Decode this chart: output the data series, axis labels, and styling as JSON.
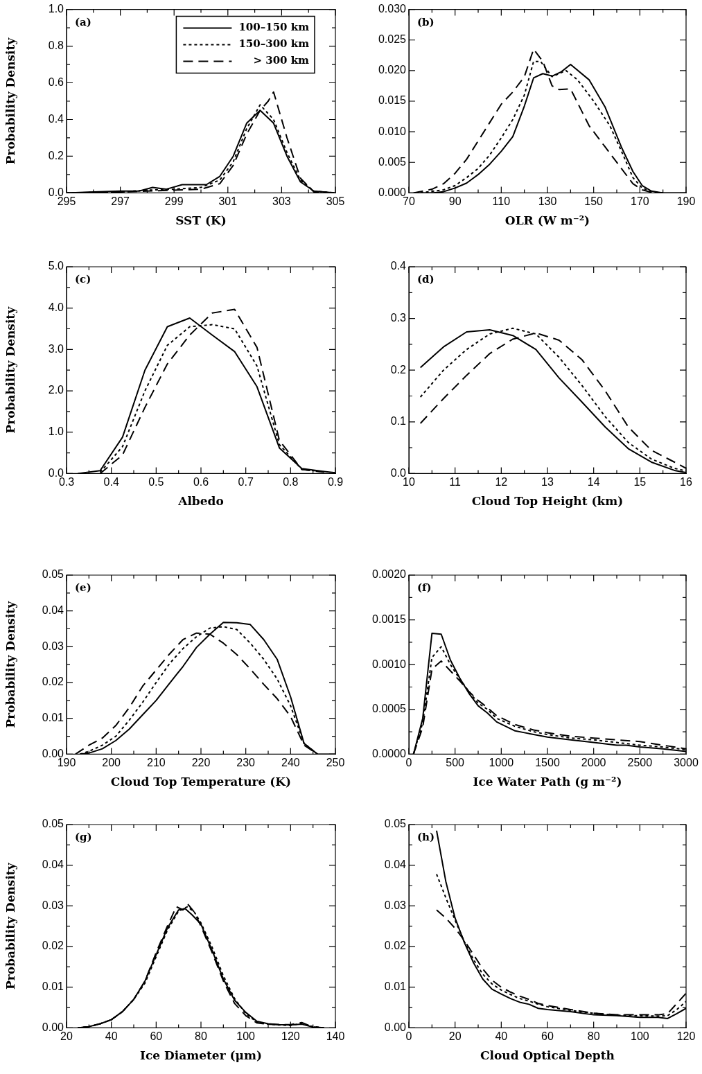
{
  "chart_data": [
    {
      "type": "line",
      "xlabel": "SST (K)",
      "ylabel": "Probability Density",
      "annotations": [
        "(a)"
      ],
      "legend": "top right",
      "xlim": [
        295,
        305
      ],
      "ylim": [
        0,
        1
      ],
      "xticks": [
        295,
        {
          "value": 296,
          "label": null
        },
        297,
        {
          "value": 298,
          "label": null
        },
        299,
        {
          "value": 300,
          "label": null
        },
        301,
        {
          "value": 302,
          "label": null
        },
        303,
        {
          "value": 304,
          "label": null
        },
        305
      ],
      "yticks": [
        {
          "value": 0,
          "label": "0.0"
        },
        {
          "value": 0.1,
          "label": null
        },
        0.2,
        {
          "value": 0.3,
          "label": null
        },
        0.4,
        {
          "value": 0.5,
          "label": null
        },
        0.6,
        {
          "value": 0.7,
          "label": null
        },
        0.8,
        {
          "value": 0.9,
          "label": null
        },
        {
          "value": 1,
          "label": "1.0"
        }
      ],
      "series": [
        {
          "name": "100–150 km",
          "color": "#000000",
          "line_style": "solid",
          "x": [
            295,
            296,
            297,
            297.7,
            298.2,
            298.7,
            299.3,
            300.2,
            300.7,
            301.2,
            301.7,
            302.2,
            302.7,
            303.2,
            303.7,
            304.2,
            305
          ],
          "values": [
            0,
            0.005,
            0.01,
            0.01,
            0.03,
            0.02,
            0.045,
            0.045,
            0.09,
            0.2,
            0.38,
            0.45,
            0.38,
            0.2,
            0.06,
            0.01,
            0
          ]
        },
        {
          "name": "150–300 km",
          "color": "#000000",
          "line_style": "dotted",
          "x": [
            295,
            297,
            298,
            299,
            300,
            300.7,
            301.2,
            301.7,
            302.2,
            302.7,
            303.2,
            303.7,
            304.2,
            305
          ],
          "values": [
            0,
            0.005,
            0.015,
            0.02,
            0.03,
            0.07,
            0.17,
            0.35,
            0.48,
            0.4,
            0.22,
            0.07,
            0.01,
            0
          ]
        },
        {
          "name": "> 300 km",
          "color": "#000000",
          "line_style": "dashed",
          "x": [
            295,
            297,
            298,
            299,
            300,
            300.7,
            301.2,
            301.7,
            302.2,
            302.5,
            302.7,
            303.2,
            303.7,
            304.2,
            305
          ],
          "values": [
            0,
            0.005,
            0.01,
            0.015,
            0.02,
            0.05,
            0.15,
            0.32,
            0.45,
            0.5,
            0.55,
            0.3,
            0.08,
            0.005,
            0
          ]
        }
      ]
    },
    {
      "type": "line",
      "xlabel": "OLR (W m⁻²)",
      "annotations": [
        "(b)"
      ],
      "xlim": [
        70,
        190
      ],
      "ylim": [
        0,
        0.03
      ],
      "xticks": [
        70,
        {
          "value": 80,
          "label": null
        },
        90,
        {
          "value": 100,
          "label": null
        },
        110,
        {
          "value": 120,
          "label": null
        },
        130,
        {
          "value": 140,
          "label": null
        },
        150,
        {
          "value": 160,
          "label": null
        },
        170,
        {
          "value": 180,
          "label": null
        },
        190
      ],
      "yticks": [
        {
          "value": 0,
          "label": "0.000"
        },
        {
          "value": 0.005,
          "label": "0.005"
        },
        {
          "value": 0.01,
          "label": "0.010"
        },
        {
          "value": 0.015,
          "label": "0.015"
        },
        {
          "value": 0.02,
          "label": "0.020"
        },
        {
          "value": 0.025,
          "label": "0.025"
        },
        {
          "value": 0.03,
          "label": "0.030"
        }
      ],
      "series": [
        {
          "color": "#000000",
          "line_style": "solid",
          "x": [
            75,
            80,
            85,
            90,
            95,
            100,
            105,
            110,
            115,
            120,
            124,
            128,
            132,
            136,
            140,
            148,
            155,
            162,
            167,
            171,
            175,
            180,
            190
          ],
          "values": [
            0,
            0,
            0.0002,
            0.0008,
            0.0016,
            0.003,
            0.0047,
            0.0068,
            0.0092,
            0.0142,
            0.0188,
            0.0195,
            0.0191,
            0.0198,
            0.021,
            0.0185,
            0.014,
            0.0075,
            0.0035,
            0.0012,
            0.0003,
            0,
            0
          ]
        },
        {
          "color": "#000000",
          "line_style": "dotted",
          "x": [
            75,
            85,
            90,
            95,
            100,
            105,
            110,
            115,
            120,
            124,
            127,
            132,
            138,
            143,
            150,
            157,
            163,
            167,
            171,
            175,
            180
          ],
          "values": [
            0,
            0.0005,
            0.0012,
            0.0025,
            0.004,
            0.0062,
            0.009,
            0.012,
            0.016,
            0.0215,
            0.0215,
            0.019,
            0.02,
            0.0185,
            0.015,
            0.011,
            0.006,
            0.0025,
            0.0008,
            0.0002,
            0
          ]
        },
        {
          "color": "#000000",
          "line_style": "dashed",
          "x": [
            72,
            80,
            85,
            90,
            95,
            100,
            105,
            110,
            115,
            120,
            124,
            128,
            132,
            135,
            140,
            148,
            155,
            162,
            167,
            171,
            175,
            180
          ],
          "values": [
            0,
            0.0006,
            0.0015,
            0.0032,
            0.0055,
            0.0085,
            0.0115,
            0.0145,
            0.0165,
            0.019,
            0.0235,
            0.0215,
            0.0175,
            0.0169,
            0.017,
            0.011,
            0.0075,
            0.004,
            0.0015,
            0.0005,
            0.0001,
            0
          ]
        }
      ]
    },
    {
      "type": "line",
      "xlabel": "Albedo",
      "ylabel": "Probability Density",
      "annotations": [
        "(c)"
      ],
      "xlim": [
        0.3,
        0.9
      ],
      "ylim": [
        0,
        5
      ],
      "xticks": [
        0.3,
        {
          "value": 0.35,
          "label": null
        },
        0.4,
        {
          "value": 0.45,
          "label": null
        },
        0.5,
        {
          "value": 0.55,
          "label": null
        },
        0.6,
        {
          "value": 0.65,
          "label": null
        },
        0.7,
        {
          "value": 0.75,
          "label": null
        },
        0.8,
        {
          "value": 0.85,
          "label": null
        },
        0.9
      ],
      "yticks": [
        {
          "value": 0,
          "label": "0.0"
        },
        {
          "value": 0.5,
          "label": null
        },
        {
          "value": 1,
          "label": "1.0"
        },
        {
          "value": 1.5,
          "label": null
        },
        {
          "value": 2,
          "label": "2.0"
        },
        {
          "value": 2.5,
          "label": null
        },
        {
          "value": 3,
          "label": "3.0"
        },
        {
          "value": 3.5,
          "label": null
        },
        {
          "value": 4,
          "label": "4.0"
        },
        {
          "value": 4.5,
          "label": null
        },
        {
          "value": 5,
          "label": "5.0"
        }
      ],
      "series": [
        {
          "color": "#000000",
          "line_style": "solid",
          "x": [
            0.325,
            0.375,
            0.425,
            0.475,
            0.525,
            0.575,
            0.625,
            0.675,
            0.725,
            0.775,
            0.825,
            0.875,
            0.9
          ],
          "values": [
            0,
            0.07,
            0.88,
            2.5,
            3.55,
            3.76,
            3.35,
            2.95,
            2.1,
            0.62,
            0.12,
            0.05,
            0.02
          ]
        },
        {
          "color": "#000000",
          "line_style": "dotted",
          "x": [
            0.375,
            0.425,
            0.475,
            0.525,
            0.575,
            0.625,
            0.675,
            0.725,
            0.775,
            0.825,
            0.875
          ],
          "values": [
            0.03,
            0.65,
            2,
            3.1,
            3.55,
            3.6,
            3.5,
            2.6,
            0.7,
            0.1,
            0.04
          ]
        },
        {
          "color": "#000000",
          "line_style": "dashed",
          "x": [
            0.375,
            0.425,
            0.475,
            0.525,
            0.575,
            0.625,
            0.675,
            0.725,
            0.775,
            0.825,
            0.875
          ],
          "values": [
            0,
            0.45,
            1.6,
            2.65,
            3.35,
            3.88,
            3.97,
            3.05,
            0.8,
            0.1,
            0.03
          ]
        }
      ]
    },
    {
      "type": "line",
      "xlabel": "Cloud Top Height (km)",
      "annotations": [
        "(d)"
      ],
      "xlim": [
        10,
        16
      ],
      "ylim": [
        0,
        0.4
      ],
      "xticks": [
        10,
        {
          "value": 10.5,
          "label": null
        },
        11,
        {
          "value": 11.5,
          "label": null
        },
        12,
        {
          "value": 12.5,
          "label": null
        },
        13,
        {
          "value": 13.5,
          "label": null
        },
        14,
        {
          "value": 14.5,
          "label": null
        },
        15,
        {
          "value": 15.5,
          "label": null
        },
        16
      ],
      "yticks": [
        {
          "value": 0,
          "label": "0.0"
        },
        {
          "value": 0.05,
          "label": null
        },
        0.1,
        {
          "value": 0.15,
          "label": null
        },
        0.2,
        {
          "value": 0.25,
          "label": null
        },
        0.3,
        {
          "value": 0.35,
          "label": null
        },
        0.4
      ],
      "series": [
        {
          "color": "#000000",
          "line_style": "solid",
          "x": [
            10.25,
            10.75,
            11.25,
            11.75,
            12.25,
            12.75,
            13.25,
            13.75,
            14.25,
            14.75,
            15.25,
            15.75,
            16
          ],
          "values": [
            0.205,
            0.245,
            0.274,
            0.278,
            0.267,
            0.24,
            0.185,
            0.138,
            0.09,
            0.048,
            0.022,
            0.006,
            0.002
          ]
        },
        {
          "color": "#000000",
          "line_style": "dotted",
          "x": [
            10.25,
            10.75,
            11.25,
            11.75,
            12.25,
            12.75,
            13.25,
            13.75,
            14.25,
            14.75,
            15.25,
            15.75,
            16
          ],
          "values": [
            0.148,
            0.2,
            0.24,
            0.27,
            0.281,
            0.27,
            0.225,
            0.17,
            0.11,
            0.06,
            0.028,
            0.01,
            0.005
          ]
        },
        {
          "color": "#000000",
          "line_style": "dashed",
          "x": [
            10.25,
            10.75,
            11.25,
            11.75,
            12.25,
            12.75,
            13.25,
            13.75,
            14.25,
            14.75,
            15.25,
            15.75,
            16
          ],
          "values": [
            0.097,
            0.145,
            0.19,
            0.232,
            0.26,
            0.272,
            0.258,
            0.22,
            0.16,
            0.09,
            0.045,
            0.022,
            0.01
          ]
        }
      ]
    },
    {
      "type": "line",
      "xlabel": "Cloud Top Temperature (K)",
      "ylabel": "Probability Density",
      "annotations": [
        "(e)"
      ],
      "xlim": [
        190,
        250
      ],
      "ylim": [
        0,
        0.05
      ],
      "xticks": [
        190,
        {
          "value": 195,
          "label": null
        },
        200,
        {
          "value": 205,
          "label": null
        },
        210,
        {
          "value": 215,
          "label": null
        },
        220,
        {
          "value": 225,
          "label": null
        },
        230,
        {
          "value": 235,
          "label": null
        },
        240,
        {
          "value": 245,
          "label": null
        },
        250
      ],
      "yticks": [
        {
          "value": 0,
          "label": "0.00"
        },
        {
          "value": 0.005,
          "label": null
        },
        0.01,
        {
          "value": 0.015,
          "label": null
        },
        0.02,
        {
          "value": 0.025,
          "label": null
        },
        0.03,
        {
          "value": 0.035,
          "label": null
        },
        0.04,
        {
          "value": 0.045,
          "label": null
        },
        0.05
      ],
      "series": [
        {
          "color": "#000000",
          "line_style": "solid",
          "x": [
            193,
            195,
            198,
            201,
            204,
            207,
            210,
            213,
            216,
            219,
            222,
            225,
            228,
            231,
            234,
            237,
            240,
            243,
            246,
            250
          ],
          "values": [
            0,
            0.0003,
            0.0015,
            0.0038,
            0.007,
            0.011,
            0.015,
            0.0198,
            0.0245,
            0.0298,
            0.0335,
            0.0368,
            0.0367,
            0.0362,
            0.032,
            0.0265,
            0.016,
            0.003,
            0,
            0
          ]
        },
        {
          "color": "#000000",
          "line_style": "dotted",
          "x": [
            193,
            195,
            198,
            201,
            204,
            207,
            210,
            213,
            216,
            219,
            222,
            225,
            228,
            231,
            234,
            237,
            240,
            243,
            246
          ],
          "values": [
            0,
            0.0008,
            0.0025,
            0.005,
            0.0095,
            0.0145,
            0.02,
            0.0253,
            0.0295,
            0.0328,
            0.0352,
            0.0356,
            0.0348,
            0.031,
            0.0265,
            0.021,
            0.0135,
            0.003,
            0
          ]
        },
        {
          "color": "#000000",
          "line_style": "dashed",
          "x": [
            192,
            195,
            198,
            201,
            204,
            207,
            210,
            213,
            216,
            219,
            222,
            225,
            228,
            231,
            234,
            237,
            240,
            243,
            246
          ],
          "values": [
            0,
            0.0025,
            0.0045,
            0.008,
            0.013,
            0.019,
            0.0235,
            0.028,
            0.032,
            0.0338,
            0.0335,
            0.031,
            0.0278,
            0.0238,
            0.0195,
            0.0155,
            0.0105,
            0.0025,
            0
          ]
        }
      ]
    },
    {
      "type": "line",
      "xlabel": "Ice Water Path (g m⁻²)",
      "annotations": [
        "(f)"
      ],
      "xlim": [
        0,
        3000
      ],
      "ylim": [
        0,
        0.002
      ],
      "xticks": [
        0,
        {
          "value": 250,
          "label": null
        },
        500,
        {
          "value": 750,
          "label": null
        },
        1000,
        {
          "value": 1250,
          "label": null
        },
        1500,
        {
          "value": 1750,
          "label": null
        },
        2000,
        {
          "value": 2250,
          "label": null
        },
        2500,
        {
          "value": 2750,
          "label": null
        },
        3000
      ],
      "yticks": [
        {
          "value": 0,
          "label": "0.0000"
        },
        {
          "value": 0.00025,
          "label": null
        },
        {
          "value": 0.0005,
          "label": "0.0005"
        },
        {
          "value": 0.00075,
          "label": null
        },
        {
          "value": 0.001,
          "label": "0.0010"
        },
        {
          "value": 0.00125,
          "label": null
        },
        {
          "value": 0.0015,
          "label": "0.0015"
        },
        {
          "value": 0.00175,
          "label": null
        },
        {
          "value": 0.002,
          "label": "0.0020"
        }
      ],
      "series": [
        {
          "color": "#000000",
          "line_style": "solid",
          "x": [
            50,
            150,
            250,
            350,
            450,
            550,
            650,
            750,
            850,
            950,
            1050,
            1150,
            1250,
            1350,
            1500,
            1750,
            2000,
            2250,
            2350,
            2500,
            2750,
            3000
          ],
          "values": [
            0,
            0.0004,
            0.00135,
            0.00134,
            0.00105,
            0.00085,
            0.00068,
            0.00054,
            0.00046,
            0.00036,
            0.00031,
            0.00026,
            0.00024,
            0.00022,
            0.00019,
            0.00016,
            0.00013,
            0.0001,
            0.0001,
            8e-05,
            6e-05,
            3e-05
          ]
        },
        {
          "color": "#000000",
          "line_style": "dotted",
          "x": [
            50,
            150,
            250,
            350,
            450,
            550,
            650,
            750,
            850,
            950,
            1150,
            1350,
            1500,
            1750,
            2000,
            2250,
            2500,
            2750,
            3000
          ],
          "values": [
            0,
            0.00035,
            0.00108,
            0.0012,
            0.001,
            0.00084,
            0.0007,
            0.00057,
            0.0005,
            0.0004,
            0.00031,
            0.00025,
            0.00022,
            0.00018,
            0.00016,
            0.00013,
            0.0001,
            8e-05,
            5e-05
          ]
        },
        {
          "color": "#000000",
          "line_style": "dashed",
          "x": [
            50,
            150,
            250,
            350,
            450,
            550,
            650,
            750,
            850,
            950,
            1150,
            1350,
            1500,
            1750,
            2000,
            2250,
            2500,
            2750,
            3000
          ],
          "values": [
            0,
            0.0003,
            0.00095,
            0.00104,
            0.00093,
            0.00082,
            0.0007,
            0.0006,
            0.00052,
            0.00043,
            0.00033,
            0.00027,
            0.00024,
            0.0002,
            0.00018,
            0.00016,
            0.00014,
            0.0001,
            6e-05
          ]
        }
      ]
    },
    {
      "type": "line",
      "xlabel": "Ice Diameter (μm)",
      "ylabel": "Probability Density",
      "annotations": [
        "(g)"
      ],
      "xlim": [
        20,
        140
      ],
      "ylim": [
        0,
        0.05
      ],
      "xticks": [
        20,
        {
          "value": 30,
          "label": null
        },
        40,
        {
          "value": 50,
          "label": null
        },
        60,
        {
          "value": 70,
          "label": null
        },
        80,
        {
          "value": 90,
          "label": null
        },
        100,
        {
          "value": 110,
          "label": null
        },
        120,
        {
          "value": 130,
          "label": null
        },
        140
      ],
      "yticks": [
        {
          "value": 0,
          "label": "0.00"
        },
        {
          "value": 0.005,
          "label": null
        },
        0.01,
        {
          "value": 0.015,
          "label": null
        },
        0.02,
        {
          "value": 0.025,
          "label": null
        },
        0.03,
        {
          "value": 0.035,
          "label": null
        },
        0.04,
        {
          "value": 0.045,
          "label": null
        },
        0.05
      ],
      "series": [
        {
          "color": "#000000",
          "line_style": "solid",
          "x": [
            25,
            30,
            35,
            40,
            45,
            50,
            55,
            60,
            65,
            70,
            73,
            76,
            80,
            85,
            90,
            95,
            100,
            105,
            110,
            115,
            120,
            125,
            130,
            135
          ],
          "values": [
            0,
            0.0003,
            0.001,
            0.002,
            0.004,
            0.007,
            0.0115,
            0.018,
            0.0245,
            0.029,
            0.0293,
            0.0278,
            0.0255,
            0.019,
            0.012,
            0.0068,
            0.0038,
            0.0016,
            0.001,
            0.0008,
            0.0007,
            0.0009,
            0.0002,
            0
          ]
        },
        {
          "color": "#000000",
          "line_style": "dotted",
          "x": [
            25,
            30,
            35,
            40,
            45,
            50,
            55,
            60,
            65,
            70,
            74,
            77,
            80,
            85,
            90,
            95,
            100,
            105,
            110,
            115,
            120,
            125,
            130,
            135
          ],
          "values": [
            0,
            0.0003,
            0.001,
            0.002,
            0.004,
            0.007,
            0.011,
            0.0175,
            0.024,
            0.0287,
            0.0298,
            0.0285,
            0.0258,
            0.0198,
            0.0128,
            0.0072,
            0.0035,
            0.0014,
            0.0009,
            0.0007,
            0.0006,
            0.0011,
            0.0003,
            0
          ]
        },
        {
          "color": "#000000",
          "line_style": "dashed",
          "x": [
            25,
            30,
            35,
            40,
            45,
            50,
            55,
            60,
            65,
            69,
            72,
            74,
            77,
            80,
            85,
            90,
            95,
            100,
            105,
            110,
            115,
            120,
            125,
            130,
            135
          ],
          "values": [
            0,
            0.0003,
            0.001,
            0.002,
            0.004,
            0.007,
            0.0115,
            0.0185,
            0.025,
            0.0298,
            0.029,
            0.0305,
            0.0285,
            0.025,
            0.0185,
            0.0115,
            0.006,
            0.003,
            0.0012,
            0.0009,
            0.0008,
            0.0008,
            0.0013,
            0.0002,
            0
          ]
        }
      ]
    },
    {
      "type": "line",
      "xlabel": "Cloud Optical Depth",
      "annotations": [
        "(h)"
      ],
      "xlim": [
        0,
        120
      ],
      "ylim": [
        0,
        0.05
      ],
      "xticks": [
        0,
        {
          "value": 10,
          "label": null
        },
        20,
        {
          "value": 30,
          "label": null
        },
        40,
        {
          "value": 50,
          "label": null
        },
        60,
        {
          "value": 70,
          "label": null
        },
        80,
        {
          "value": 90,
          "label": null
        },
        100,
        {
          "value": 110,
          "label": null
        },
        120
      ],
      "yticks": [
        {
          "value": 0,
          "label": "0.00"
        },
        {
          "value": 0.005,
          "label": null
        },
        0.01,
        {
          "value": 0.015,
          "label": null
        },
        0.02,
        {
          "value": 0.025,
          "label": null
        },
        0.03,
        {
          "value": 0.035,
          "label": null
        },
        0.04,
        {
          "value": 0.045,
          "label": null
        },
        0.05
      ],
      "series": [
        {
          "color": "#000000",
          "line_style": "solid",
          "x": [
            12,
            16,
            20,
            24,
            28,
            32,
            36,
            40,
            44,
            48,
            52,
            56,
            60,
            70,
            80,
            90,
            100,
            108,
            112,
            116,
            120
          ],
          "values": [
            0.0485,
            0.036,
            0.027,
            0.021,
            0.016,
            0.012,
            0.0095,
            0.0083,
            0.0072,
            0.0063,
            0.0058,
            0.0048,
            0.0045,
            0.004,
            0.0032,
            0.003,
            0.0026,
            0.0026,
            0.0023,
            0.0035,
            0.0048
          ]
        },
        {
          "color": "#000000",
          "line_style": "dotted",
          "x": [
            12,
            16,
            20,
            24,
            28,
            32,
            36,
            40,
            44,
            48,
            52,
            56,
            60,
            70,
            80,
            90,
            100,
            108,
            112,
            116,
            120
          ],
          "values": [
            0.0378,
            0.032,
            0.0265,
            0.0212,
            0.0168,
            0.0132,
            0.0108,
            0.0093,
            0.0082,
            0.0072,
            0.0066,
            0.0058,
            0.0052,
            0.0043,
            0.0036,
            0.0031,
            0.003,
            0.0029,
            0.003,
            0.0045,
            0.0065
          ]
        },
        {
          "color": "#000000",
          "line_style": "dashed",
          "x": [
            12,
            16,
            20,
            24,
            28,
            32,
            36,
            40,
            44,
            48,
            52,
            56,
            60,
            70,
            80,
            90,
            100,
            108,
            112,
            116,
            120
          ],
          "values": [
            0.029,
            0.027,
            0.0245,
            0.0215,
            0.018,
            0.0145,
            0.0117,
            0.01,
            0.0088,
            0.0078,
            0.007,
            0.006,
            0.0055,
            0.0045,
            0.0036,
            0.0032,
            0.0032,
            0.0032,
            0.0035,
            0.006,
            0.0085
          ]
        }
      ]
    }
  ]
}
